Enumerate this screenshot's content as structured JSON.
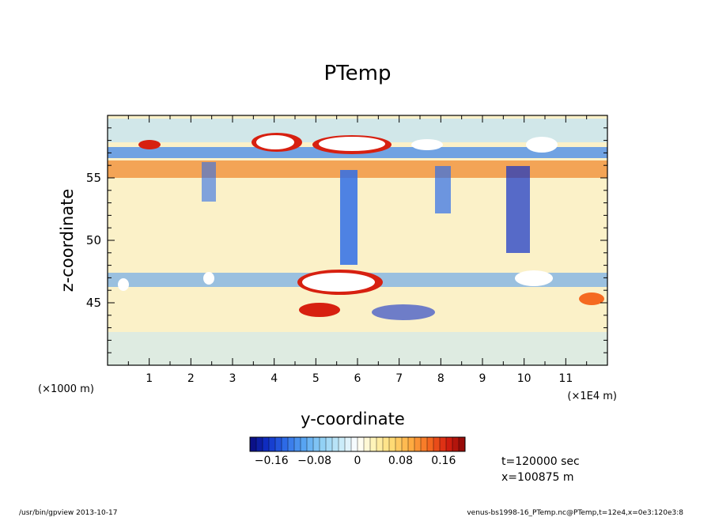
{
  "chart_data": {
    "type": "heatmap",
    "title": "PTemp",
    "xlabel": "y-coordinate",
    "ylabel": "z-coordinate",
    "x_unit_left": "(×1000 m)",
    "x_unit_right": "(×1E4 m)",
    "xlim": [
      0,
      12
    ],
    "ylim": [
      40,
      60
    ],
    "x_ticks": [
      "1",
      "2",
      "3",
      "4",
      "5",
      "6",
      "7",
      "8",
      "9",
      "10",
      "11"
    ],
    "x_tick_values": [
      1,
      2,
      3,
      4,
      5,
      6,
      7,
      8,
      9,
      10,
      11
    ],
    "y_ticks": [
      "45",
      "50",
      "55"
    ],
    "y_tick_values": [
      45,
      50,
      55
    ],
    "colorbar": {
      "min": -0.2,
      "max": 0.2,
      "tick_labels": [
        "-0.16",
        "-0.08",
        "0",
        "0.08",
        "0.16"
      ],
      "tick_values": [
        -0.16,
        -0.08,
        0,
        0.08,
        0.16
      ],
      "colors": [
        "#0a0a7a",
        "#1030c8",
        "#2f6ee8",
        "#57a4f2",
        "#8fd0f5",
        "#c4e9f8",
        "#ffffff",
        "#fff2b0",
        "#ffd870",
        "#ffaa40",
        "#f56a20",
        "#d72010",
        "#8a0808"
      ]
    },
    "annotations": [
      "t=120000 sec",
      "x=100875 m"
    ]
  },
  "footer": {
    "left": "/usr/bin/gpview   2013-10-17",
    "right": "venus-bs1998-16_PTemp.nc@PTemp,t=12e4,x=0e3:120e3:8"
  }
}
